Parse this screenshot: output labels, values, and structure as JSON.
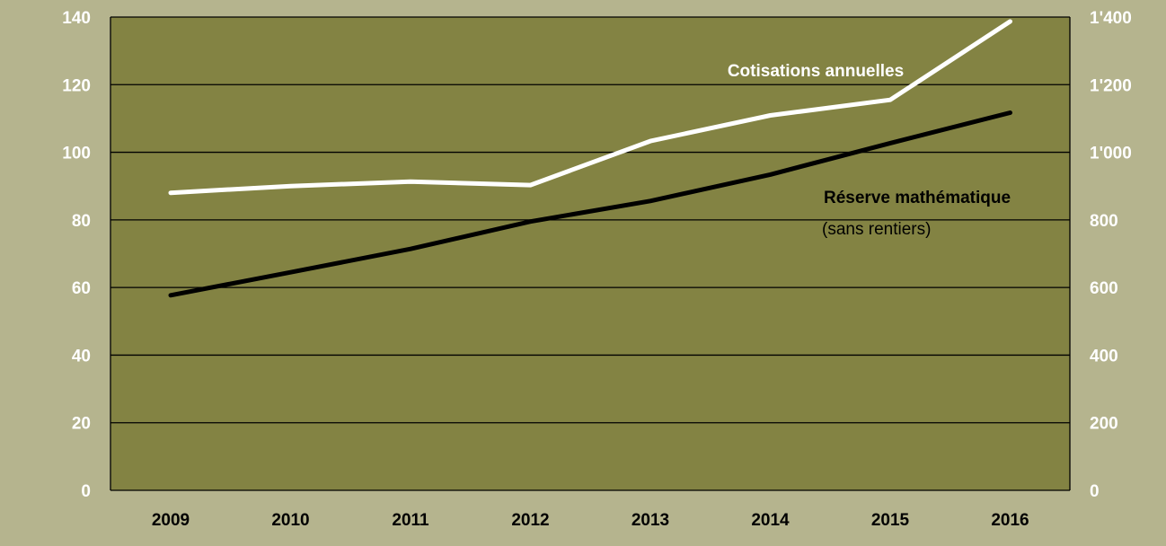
{
  "chart_data": {
    "type": "line",
    "categories": [
      "2009",
      "2010",
      "2011",
      "2012",
      "2013",
      "2014",
      "2015",
      "2016"
    ],
    "left_axis": {
      "min": 0,
      "max": 140,
      "step": 20,
      "ticks": [
        "0",
        "20",
        "40",
        "60",
        "80",
        "100",
        "120",
        "140"
      ]
    },
    "right_axis": {
      "min": 0,
      "max": 1400,
      "step": 200,
      "ticks": [
        "0",
        "200",
        "400",
        "600",
        "800",
        "1'000",
        "1'200",
        "1'400"
      ]
    },
    "grid": true,
    "series": [
      {
        "name": "Cotisations annuelles",
        "axis": "left",
        "color": "#ffffff",
        "values": [
          88,
          90,
          91.3,
          90.3,
          103.3,
          110.9,
          115.5,
          138.7
        ]
      },
      {
        "name": "Réserve mathématique",
        "subtitle": "(sans rentiers)",
        "axis": "right",
        "color": "#000000",
        "values": [
          577,
          645,
          714,
          795,
          856,
          934,
          1027,
          1117
        ]
      }
    ],
    "colors": {
      "background": "#b5b48e",
      "plot": "#838343",
      "grid": "#000000"
    }
  }
}
